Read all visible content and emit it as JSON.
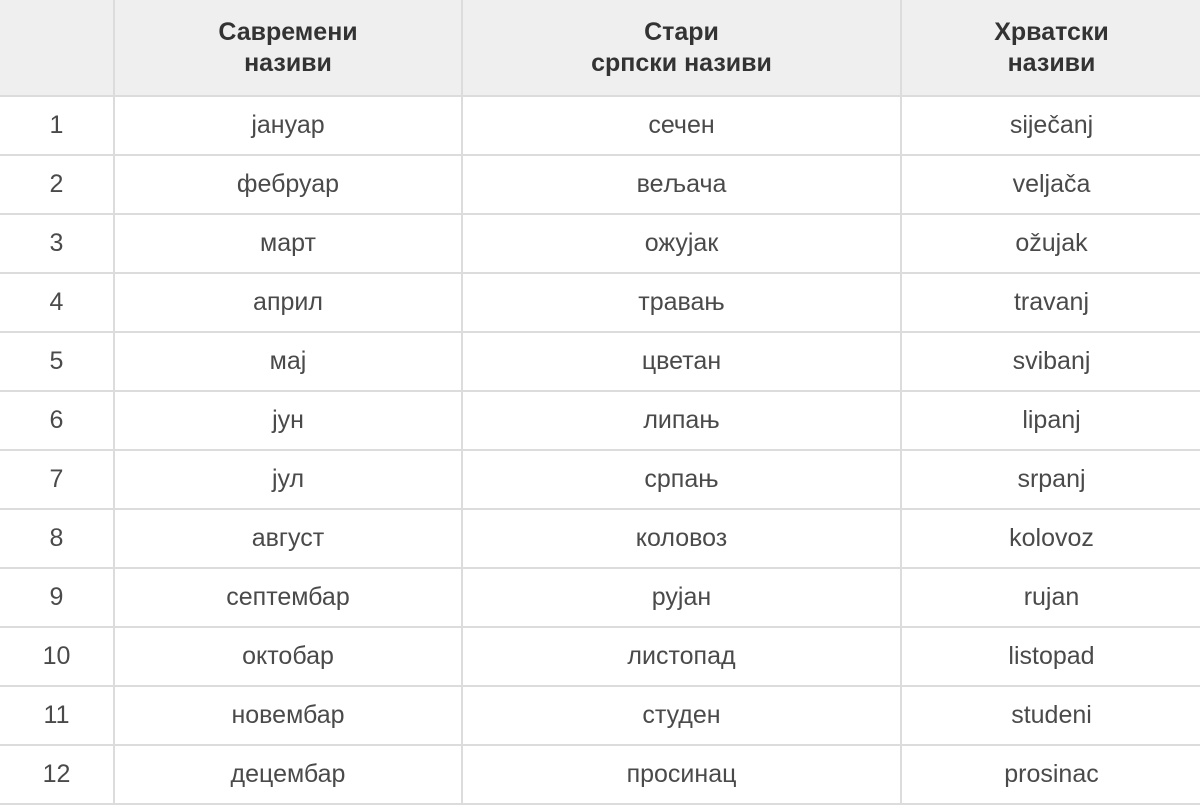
{
  "table": {
    "headers": [
      "",
      "Савремени\nназиви",
      "Стари\nсрпски називи",
      "Хрватски\nназиви"
    ],
    "header_lines": [
      [],
      [
        "Савремени",
        "називи"
      ],
      [
        "Стари",
        "српски називи"
      ],
      [
        "Хрватски",
        "називи"
      ]
    ],
    "rows": [
      [
        "1",
        "јануар",
        "сечен",
        "siječanj"
      ],
      [
        "2",
        "фебруар",
        "вељача",
        "veljača"
      ],
      [
        "3",
        "март",
        "ожујак",
        "ožujak"
      ],
      [
        "4",
        "април",
        "травањ",
        "travanj"
      ],
      [
        "5",
        "мај",
        "цветан",
        "svibanj"
      ],
      [
        "6",
        "јун",
        "липањ",
        "lipanj"
      ],
      [
        "7",
        "јул",
        "српањ",
        "srpanj"
      ],
      [
        "8",
        "август",
        "коловоз",
        "kolovoz"
      ],
      [
        "9",
        "септембар",
        "рујан",
        "rujan"
      ],
      [
        "10",
        "октобар",
        "листопад",
        "listopad"
      ],
      [
        "11",
        "новембар",
        "студен",
        "studeni"
      ],
      [
        "12",
        "децембар",
        "просинац",
        "prosinac"
      ]
    ]
  },
  "colors": {
    "header_bg": "#efefef",
    "border": "#dcdcdc",
    "text": "#4a4a4a",
    "header_text": "#333333"
  }
}
